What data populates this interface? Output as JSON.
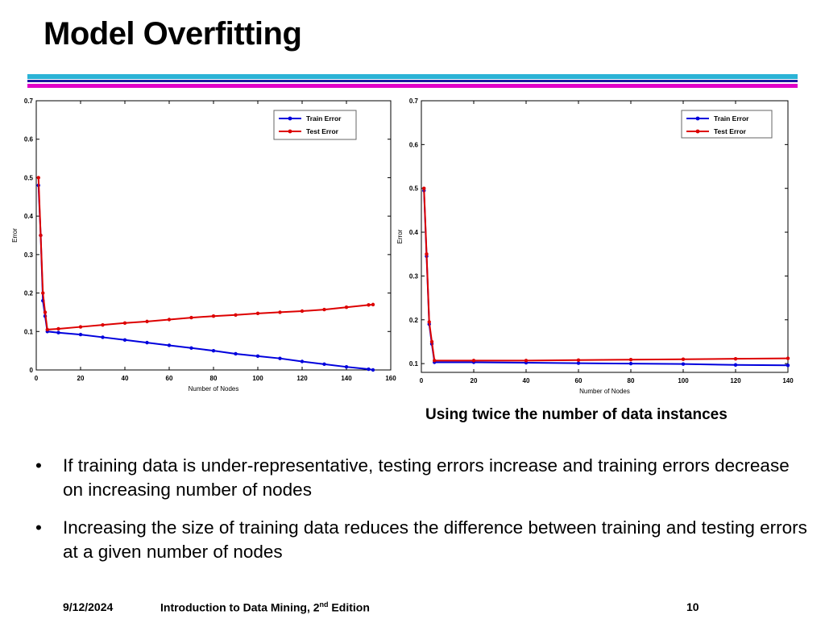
{
  "slide": {
    "title": "Model Overfitting",
    "accent_colors": [
      "#2bb3d6",
      "#1a1aa0",
      "#e000c8"
    ],
    "caption": "Using twice the number of data instances",
    "bullets": [
      "If training data is under-representative, testing errors increase and training errors decrease on increasing number of nodes",
      "Increasing the size of training data reduces the difference between training and testing errors at a given number of nodes"
    ],
    "bullet_glyph": "•",
    "footer": {
      "date": "9/12/2024",
      "book_prefix": "Introduction to Data Mining, 2",
      "book_sup": "nd",
      "book_suffix": " Edition",
      "page": "10"
    }
  },
  "chart_data": [
    {
      "type": "line",
      "xlabel": "Number of Nodes",
      "ylabel": "Error",
      "xlim": [
        0,
        160
      ],
      "ylim": [
        0,
        0.7
      ],
      "xticks": [
        0,
        20,
        40,
        60,
        80,
        100,
        120,
        140,
        160
      ],
      "yticks": [
        0,
        0.1,
        0.2,
        0.3,
        0.4,
        0.5,
        0.6,
        0.7
      ],
      "grid": false,
      "legend_position": "top-right",
      "series": [
        {
          "name": "Train Error",
          "color": "#0000dd",
          "x": [
            1,
            2,
            3,
            4,
            5,
            10,
            20,
            30,
            40,
            50,
            60,
            70,
            80,
            90,
            100,
            110,
            120,
            130,
            140,
            150,
            152
          ],
          "y": [
            0.48,
            0.35,
            0.18,
            0.14,
            0.1,
            0.097,
            0.092,
            0.085,
            0.078,
            0.071,
            0.064,
            0.057,
            0.05,
            0.042,
            0.036,
            0.03,
            0.022,
            0.015,
            0.008,
            0.002,
            0.0
          ]
        },
        {
          "name": "Test Error",
          "color": "#dd0000",
          "x": [
            1,
            2,
            3,
            4,
            5,
            10,
            20,
            30,
            40,
            50,
            60,
            70,
            80,
            90,
            100,
            110,
            120,
            130,
            140,
            150,
            152
          ],
          "y": [
            0.5,
            0.35,
            0.2,
            0.15,
            0.105,
            0.107,
            0.112,
            0.117,
            0.122,
            0.126,
            0.131,
            0.136,
            0.14,
            0.143,
            0.147,
            0.15,
            0.153,
            0.157,
            0.163,
            0.169,
            0.17
          ]
        }
      ]
    },
    {
      "type": "line",
      "xlabel": "Number of Nodes",
      "ylabel": "Error",
      "xlim": [
        0,
        140
      ],
      "ylim": [
        0.08,
        0.7
      ],
      "xticks": [
        0,
        20,
        40,
        60,
        80,
        100,
        120,
        140
      ],
      "yticks": [
        0.1,
        0.2,
        0.3,
        0.4,
        0.5,
        0.6,
        0.7
      ],
      "grid": false,
      "legend_position": "top-right",
      "series": [
        {
          "name": "Train Error",
          "color": "#0000dd",
          "x": [
            1,
            2,
            3,
            4,
            5,
            20,
            40,
            60,
            80,
            100,
            120,
            140
          ],
          "y": [
            0.495,
            0.345,
            0.19,
            0.145,
            0.103,
            0.103,
            0.102,
            0.101,
            0.1,
            0.099,
            0.097,
            0.096
          ]
        },
        {
          "name": "Test Error",
          "color": "#dd0000",
          "x": [
            1,
            2,
            3,
            4,
            5,
            20,
            40,
            60,
            80,
            100,
            120,
            140
          ],
          "y": [
            0.5,
            0.35,
            0.195,
            0.15,
            0.107,
            0.107,
            0.107,
            0.108,
            0.109,
            0.11,
            0.111,
            0.112
          ]
        }
      ]
    }
  ]
}
